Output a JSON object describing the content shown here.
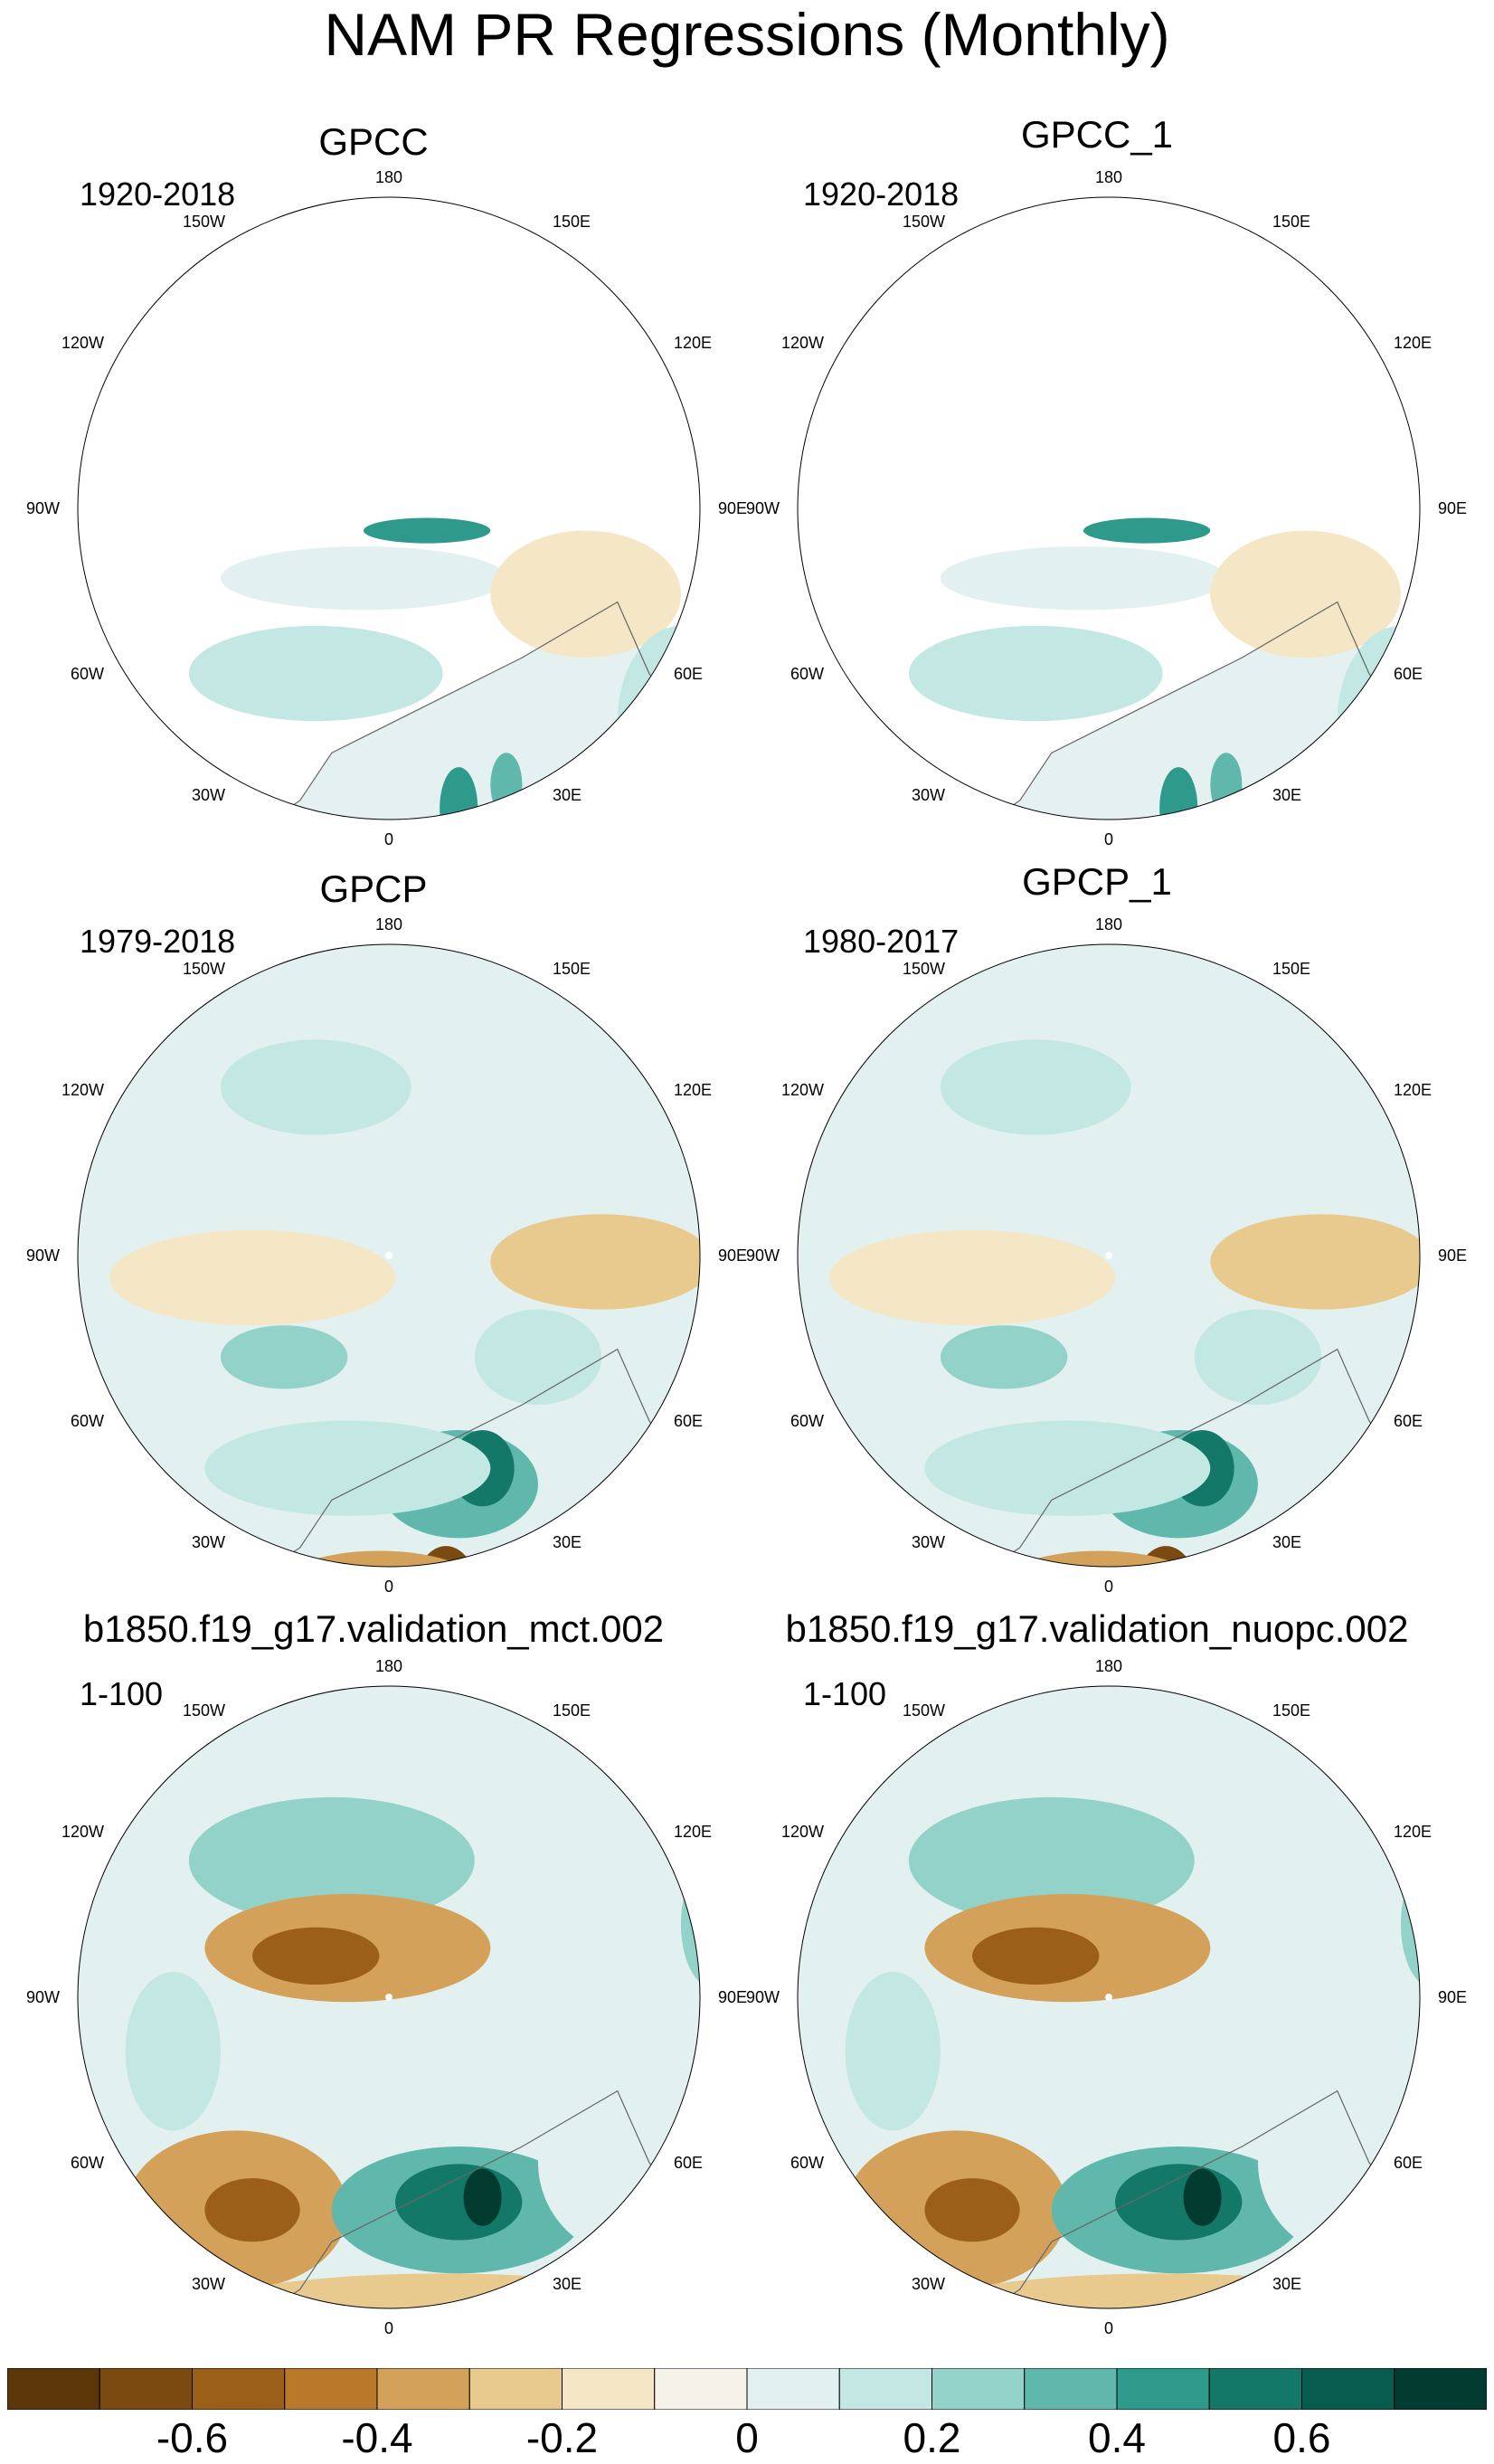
{
  "title": "NAM PR Regressions (Monthly)",
  "panels": [
    {
      "title": "GPCC",
      "subtitle": "1920-2018"
    },
    {
      "title": "GPCC_1",
      "subtitle": "1920-2018"
    },
    {
      "title": "GPCP",
      "subtitle": "1979-2018"
    },
    {
      "title": "GPCP_1",
      "subtitle": "1980-2017"
    },
    {
      "title": "b1850.f19_g17.validation_mct.002",
      "subtitle": "1-100"
    },
    {
      "title": "b1850.f19_g17.validation_nuopc.002",
      "subtitle": "1-100"
    }
  ],
  "longitude_labels": [
    "180",
    "150E",
    "120E",
    "90E",
    "60E",
    "30E",
    "0",
    "30W",
    "60W",
    "90W",
    "120W",
    "150W"
  ],
  "colorbar": {
    "colors": [
      "#5a3609",
      "#7a4a10",
      "#9b5f1a",
      "#b9782a",
      "#d3a15a",
      "#e8c98e",
      "#f5e6c5",
      "#f5f2e9",
      "#e2f0ef",
      "#c3e7e2",
      "#92d2c8",
      "#5fb8ab",
      "#2e9a8b",
      "#137868",
      "#075c4e",
      "#023c31"
    ],
    "levels": [
      -0.7,
      -0.6,
      -0.5,
      -0.4,
      -0.3,
      -0.2,
      -0.1,
      0,
      0.1,
      0.2,
      0.3,
      0.4,
      0.5,
      0.6,
      0.7
    ],
    "tick_labels": [
      "-0.6",
      "-0.4",
      "-0.2",
      "0",
      "0.2",
      "0.4",
      "0.6"
    ]
  }
}
